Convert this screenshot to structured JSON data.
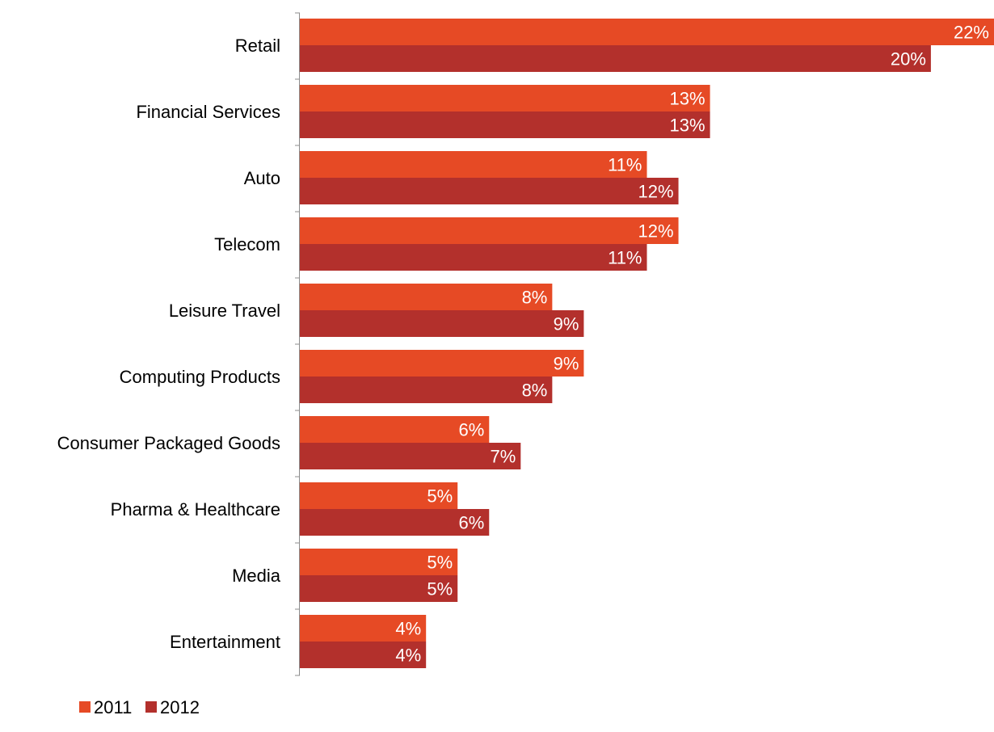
{
  "chart_data": {
    "type": "bar",
    "orientation": "horizontal",
    "title": "",
    "xlabel": "",
    "ylabel": "",
    "categories": [
      "Retail",
      "Financial Services",
      "Auto",
      "Telecom",
      "Leisure Travel",
      "Computing Products",
      "Consumer Packaged Goods",
      "Pharma & Healthcare",
      "Media",
      "Entertainment"
    ],
    "series": [
      {
        "name": "2011",
        "color": "#E64A25",
        "values": [
          22,
          13,
          11,
          12,
          8,
          9,
          6,
          5,
          5,
          4
        ],
        "labels": [
          "22%",
          "13%",
          "11%",
          "12%",
          "8%",
          "9%",
          "6%",
          "5%",
          "5%",
          "4%"
        ]
      },
      {
        "name": "2012",
        "color": "#B3302C",
        "values": [
          20,
          13,
          12,
          11,
          9,
          8,
          7,
          6,
          5,
          4
        ],
        "labels": [
          "20%",
          "13%",
          "12%",
          "11%",
          "9%",
          "8%",
          "7%",
          "6%",
          "5%",
          "4%"
        ]
      }
    ],
    "value_unit": "%",
    "xlim": [
      0,
      22
    ],
    "grid": false,
    "legend_position": "bottom-left"
  }
}
